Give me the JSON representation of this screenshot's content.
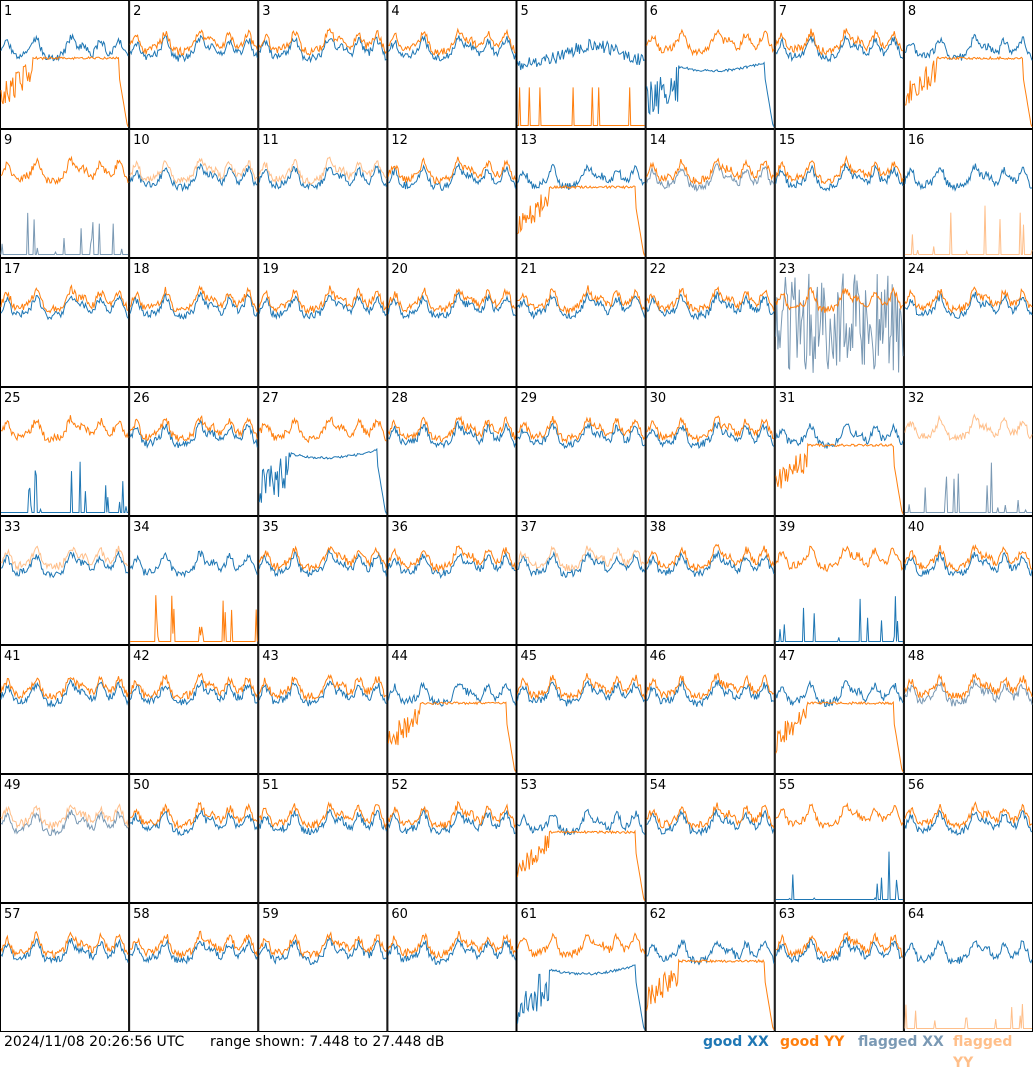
{
  "chart_data": {
    "type": "line",
    "layout": "8x8 small multiples of antenna spectra",
    "timestamp": "2024/11/08 20:26:56 UTC",
    "range_text": "range shown: 7.448 to 27.448 dB",
    "range_db": [
      7.448,
      27.448
    ],
    "legend": [
      {
        "label": "good XX",
        "color": "#1f77b4"
      },
      {
        "label": "good YY",
        "color": "#ff7f0e"
      },
      {
        "label": "flagged XX",
        "color": "#7a99b4"
      },
      {
        "label": "flagged YY",
        "color": "#ffbf8a"
      }
    ],
    "colors": {
      "good_xx": "#1f77b4",
      "good_yy": "#ff7f0e",
      "flagged_xx": "#7a99b4",
      "flagged_yy": "#ffbf8a"
    },
    "panels": [
      {
        "label": "1",
        "xx": "good",
        "yy": "good",
        "shape": "dip_yy"
      },
      {
        "label": "2",
        "xx": "good",
        "yy": "good",
        "shape": "normal"
      },
      {
        "label": "3",
        "xx": "good",
        "yy": "good",
        "shape": "normal"
      },
      {
        "label": "4",
        "xx": "good",
        "yy": "good",
        "shape": "normal"
      },
      {
        "label": "5",
        "xx": "good",
        "yy": "good",
        "shape": "dip_xx_yylow"
      },
      {
        "label": "6",
        "xx": "good",
        "yy": "good",
        "shape": "dip_xx"
      },
      {
        "label": "7",
        "xx": "good",
        "yy": "good",
        "shape": "normal"
      },
      {
        "label": "8",
        "xx": "good",
        "yy": "good",
        "shape": "dip_yy"
      },
      {
        "label": "9",
        "xx": "flagged",
        "yy": "good",
        "shape": "xx_low"
      },
      {
        "label": "10",
        "xx": "good",
        "yy": "flagged",
        "shape": "normal"
      },
      {
        "label": "11",
        "xx": "good",
        "yy": "flagged",
        "shape": "normal"
      },
      {
        "label": "12",
        "xx": "good",
        "yy": "good",
        "shape": "normal"
      },
      {
        "label": "13",
        "xx": "good",
        "yy": "good",
        "shape": "dip_yy"
      },
      {
        "label": "14",
        "xx": "flagged",
        "yy": "good",
        "shape": "normal"
      },
      {
        "label": "15",
        "xx": "good",
        "yy": "good",
        "shape": "normal"
      },
      {
        "label": "16",
        "xx": "good",
        "yy": "flagged",
        "shape": "yy_low"
      },
      {
        "label": "17",
        "xx": "good",
        "yy": "good",
        "shape": "normal"
      },
      {
        "label": "18",
        "xx": "good",
        "yy": "good",
        "shape": "normal"
      },
      {
        "label": "19",
        "xx": "good",
        "yy": "good",
        "shape": "normal"
      },
      {
        "label": "20",
        "xx": "good",
        "yy": "good",
        "shape": "normal"
      },
      {
        "label": "21",
        "xx": "good",
        "yy": "good",
        "shape": "normal"
      },
      {
        "label": "22",
        "xx": "good",
        "yy": "good",
        "shape": "normal"
      },
      {
        "label": "23",
        "xx": "flagged",
        "yy": "good",
        "shape": "xx_noisy"
      },
      {
        "label": "24",
        "xx": "good",
        "yy": "good",
        "shape": "normal"
      },
      {
        "label": "25",
        "xx": "good",
        "yy": "good",
        "shape": "xx_low"
      },
      {
        "label": "26",
        "xx": "good",
        "yy": "good",
        "shape": "normal"
      },
      {
        "label": "27",
        "xx": "good",
        "yy": "good",
        "shape": "dip_xx"
      },
      {
        "label": "28",
        "xx": "good",
        "yy": "good",
        "shape": "normal"
      },
      {
        "label": "29",
        "xx": "good",
        "yy": "good",
        "shape": "normal"
      },
      {
        "label": "30",
        "xx": "good",
        "yy": "good",
        "shape": "normal"
      },
      {
        "label": "31",
        "xx": "good",
        "yy": "good",
        "shape": "dip_yy"
      },
      {
        "label": "32",
        "xx": "flagged",
        "yy": "flagged",
        "shape": "xx_low"
      },
      {
        "label": "33",
        "xx": "good",
        "yy": "flagged",
        "shape": "normal"
      },
      {
        "label": "34",
        "xx": "good",
        "yy": "good",
        "shape": "yy_low"
      },
      {
        "label": "35",
        "xx": "good",
        "yy": "good",
        "shape": "normal"
      },
      {
        "label": "36",
        "xx": "good",
        "yy": "good",
        "shape": "normal"
      },
      {
        "label": "37",
        "xx": "good",
        "yy": "flagged",
        "shape": "normal"
      },
      {
        "label": "38",
        "xx": "good",
        "yy": "good",
        "shape": "normal"
      },
      {
        "label": "39",
        "xx": "good",
        "yy": "good",
        "shape": "xx_low"
      },
      {
        "label": "40",
        "xx": "good",
        "yy": "good",
        "shape": "normal"
      },
      {
        "label": "41",
        "xx": "good",
        "yy": "good",
        "shape": "normal"
      },
      {
        "label": "42",
        "xx": "good",
        "yy": "good",
        "shape": "normal"
      },
      {
        "label": "43",
        "xx": "good",
        "yy": "good",
        "shape": "normal"
      },
      {
        "label": "44",
        "xx": "good",
        "yy": "good",
        "shape": "dip_yy"
      },
      {
        "label": "45",
        "xx": "good",
        "yy": "good",
        "shape": "normal"
      },
      {
        "label": "46",
        "xx": "good",
        "yy": "good",
        "shape": "normal"
      },
      {
        "label": "47",
        "xx": "good",
        "yy": "good",
        "shape": "dip_yy"
      },
      {
        "label": "48",
        "xx": "flagged",
        "yy": "good",
        "shape": "normal"
      },
      {
        "label": "49",
        "xx": "flagged",
        "yy": "flagged",
        "shape": "normal"
      },
      {
        "label": "50",
        "xx": "good",
        "yy": "good",
        "shape": "normal"
      },
      {
        "label": "51",
        "xx": "good",
        "yy": "good",
        "shape": "normal"
      },
      {
        "label": "52",
        "xx": "good",
        "yy": "good",
        "shape": "normal"
      },
      {
        "label": "53",
        "xx": "good",
        "yy": "good",
        "shape": "dip_yy"
      },
      {
        "label": "54",
        "xx": "good",
        "yy": "good",
        "shape": "normal"
      },
      {
        "label": "55",
        "xx": "good",
        "yy": "good",
        "shape": "xx_low"
      },
      {
        "label": "56",
        "xx": "good",
        "yy": "good",
        "shape": "normal"
      },
      {
        "label": "57",
        "xx": "good",
        "yy": "good",
        "shape": "normal"
      },
      {
        "label": "58",
        "xx": "good",
        "yy": "good",
        "shape": "normal"
      },
      {
        "label": "59",
        "xx": "good",
        "yy": "good",
        "shape": "normal"
      },
      {
        "label": "60",
        "xx": "good",
        "yy": "good",
        "shape": "normal"
      },
      {
        "label": "61",
        "xx": "good",
        "yy": "good",
        "shape": "dip_xx"
      },
      {
        "label": "62",
        "xx": "good",
        "yy": "good",
        "shape": "dip_yy"
      },
      {
        "label": "63",
        "xx": "good",
        "yy": "good",
        "shape": "normal"
      },
      {
        "label": "64",
        "xx": "good",
        "yy": "flagged",
        "shape": "yy_low"
      }
    ]
  }
}
